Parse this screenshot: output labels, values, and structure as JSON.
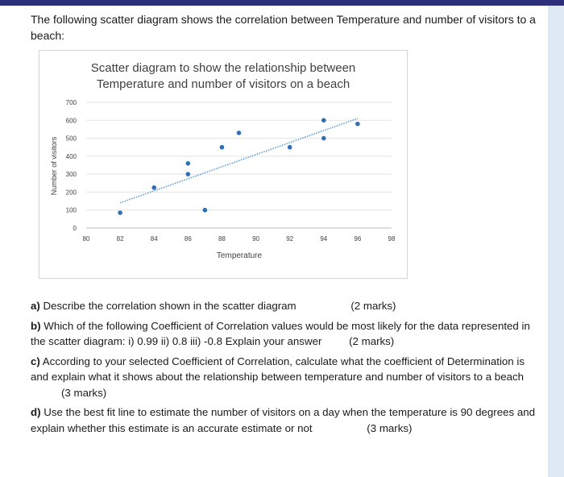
{
  "intro": "The following scatter diagram shows the correlation between Temperature and number of visitors to a beach:",
  "chart_data": {
    "type": "scatter",
    "title_line1": "Scatter diagram to show the relationship between",
    "title_line2": "Temperature and number of visitors on a beach",
    "xlabel": "Temperature",
    "ylabel": "Number of visitors",
    "xlim": [
      80,
      98
    ],
    "ylim": [
      0,
      700
    ],
    "x_ticks": [
      "80",
      "82",
      "84",
      "86",
      "88",
      "90",
      "92",
      "94",
      "96",
      "98"
    ],
    "y_ticks": [
      "0",
      "100",
      "200",
      "300",
      "400",
      "500",
      "600",
      "700"
    ],
    "points": [
      {
        "x": 82,
        "y": 85
      },
      {
        "x": 84,
        "y": 225
      },
      {
        "x": 86,
        "y": 300
      },
      {
        "x": 86,
        "y": 360
      },
      {
        "x": 87,
        "y": 100
      },
      {
        "x": 88,
        "y": 450
      },
      {
        "x": 89,
        "y": 530
      },
      {
        "x": 92,
        "y": 450
      },
      {
        "x": 94,
        "y": 500
      },
      {
        "x": 94,
        "y": 600
      },
      {
        "x": 96,
        "y": 580
      }
    ],
    "trendline": {
      "x1": 82,
      "y1": 140,
      "x2": 96,
      "y2": 610
    },
    "grid": "horizontal",
    "point_color": "#2e6fb7",
    "trend_color": "#5a9bd5"
  },
  "questions": {
    "a_label": "a)",
    "a_text": "Describe the correlation shown in the scatter diagram",
    "a_marks": "(2 marks)",
    "b_label": "b)",
    "b_text": "Which of the following Coefficient of Correlation values would be most likely for the data represented in the scatter diagram: i) 0.99   ii) 0.8   iii) -0.8  Explain your answer",
    "b_marks": "(2 marks)",
    "c_label": "c)",
    "c_text": "According to your selected Coefficient of Correlation, calculate what the coefficient of Determination is and explain what it shows about the relationship between temperature and number of visitors to a beach",
    "c_marks": "(3 marks)",
    "d_label": "d)",
    "d_text": "Use the best fit line to estimate the number of visitors on a day when the temperature is 90 degrees and explain whether this estimate is an accurate estimate or not",
    "d_marks": "(3 marks)"
  }
}
